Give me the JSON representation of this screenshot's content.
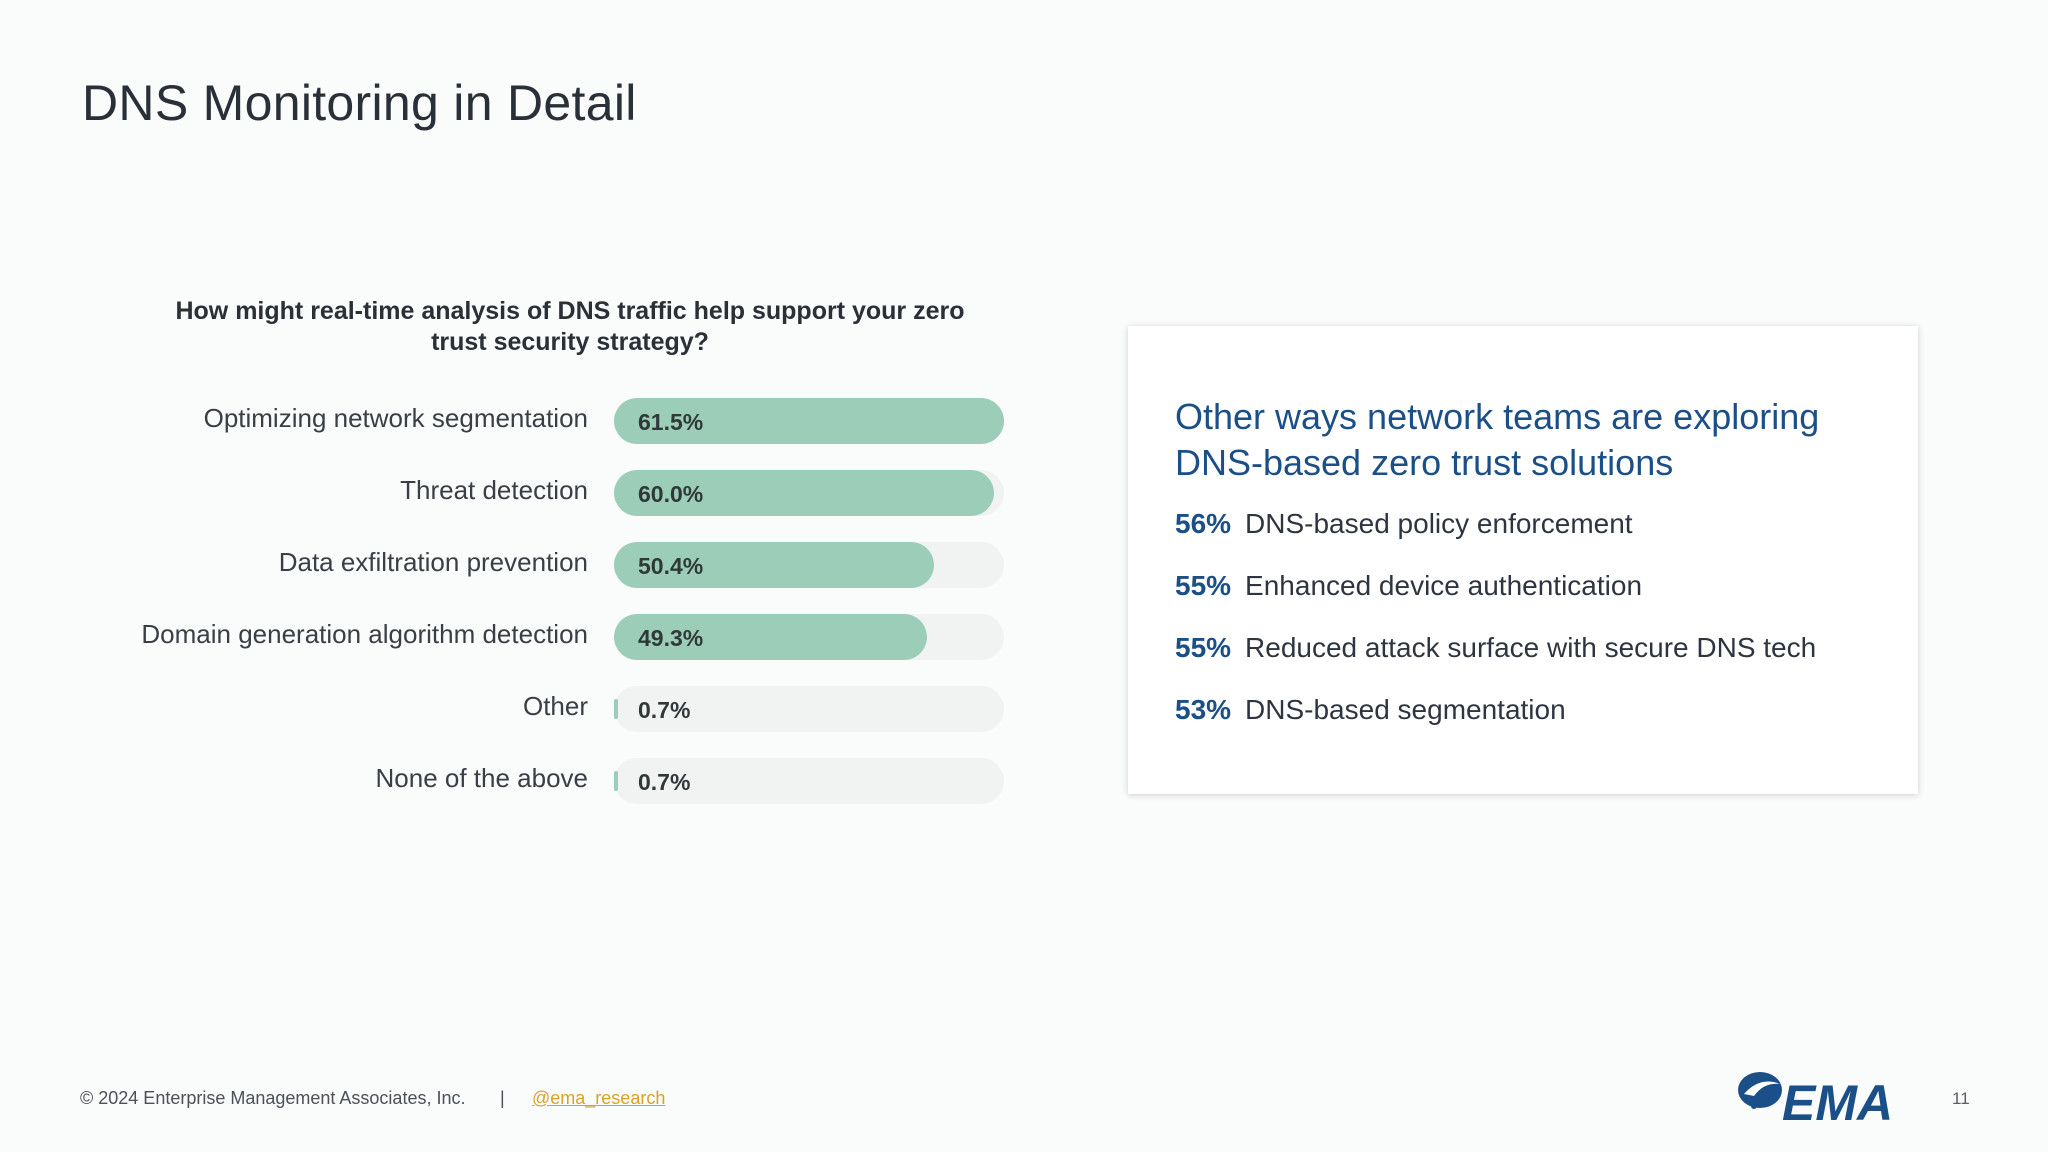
{
  "slide": {
    "title": "DNS Monitoring in Detail",
    "page_number": "11"
  },
  "chart_data": {
    "type": "bar",
    "orientation": "horizontal",
    "title": "How might real-time analysis of DNS traffic help support your zero trust security strategy?",
    "categories": [
      "Optimizing network segmentation",
      "Threat detection",
      "Data exfiltration prevention",
      "Domain generation algorithm detection",
      "Other",
      "None of the above"
    ],
    "values": [
      61.5,
      60.0,
      50.4,
      49.3,
      0.7,
      0.7
    ],
    "value_labels": [
      "61.5%",
      "60.0%",
      "50.4%",
      "49.3%",
      "0.7%",
      "0.7%"
    ],
    "xlim": [
      0,
      61.5
    ],
    "bar_color": "#9ccdb9",
    "track_color": "#f1f3f3"
  },
  "side_panel": {
    "heading": "Other ways network teams are exploring DNS-based zero trust solutions",
    "items": [
      {
        "pct": "56%",
        "text": "DNS-based policy enforcement"
      },
      {
        "pct": "55%",
        "text": "Enhanced device authentication"
      },
      {
        "pct": "55%",
        "text": "Reduced attack surface with secure DNS tech"
      },
      {
        "pct": "53%",
        "text": "DNS-based segmentation"
      }
    ],
    "accent_color": "#1b4f87"
  },
  "footer": {
    "copyright": "© 2024 Enterprise Management Associates, Inc.",
    "separator": "|",
    "handle": "@ema_research",
    "logo_text": "EMA",
    "logo_icon": "ema-swoosh-icon"
  }
}
